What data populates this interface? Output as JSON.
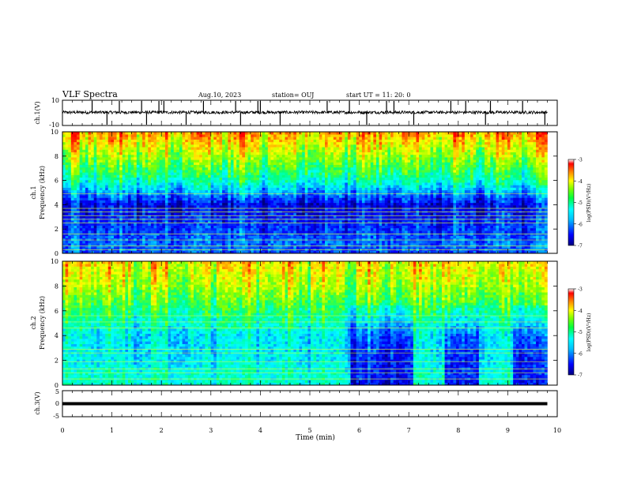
{
  "header": {
    "title": "VLF Spectra",
    "date": "Aug.10, 2023",
    "station": "station= OUJ",
    "start": "start  UT =   11: 20: 0"
  },
  "colors": {
    "axis": "#000000",
    "trace": "#000000",
    "colormap": [
      "#000080",
      "#0000ff",
      "#0080ff",
      "#00ffff",
      "#00ff80",
      "#80ff00",
      "#ffff00",
      "#ff8000",
      "#ff0000"
    ]
  },
  "chart_data": [
    {
      "type": "line",
      "name": "ch1-waveform",
      "ylabel": "ch.1(V)",
      "ylim": [
        -10,
        10
      ],
      "yticks": [
        "10",
        "-10"
      ],
      "xlim": [
        0,
        10
      ],
      "data_extent_min": 9.8,
      "baseline_v": 0.4,
      "noise_amplitude_v": 1.2,
      "spike_times_min": [
        0.6,
        0.9,
        1.15,
        1.6,
        1.7,
        1.95,
        2.05,
        2.5,
        2.85,
        3.5,
        3.6,
        3.95,
        4.0,
        4.4,
        5.35,
        5.8,
        6.15,
        6.55,
        6.7,
        7.1,
        7.85,
        8.15,
        8.55,
        8.65,
        9.3,
        9.75
      ]
    },
    {
      "type": "heatmap",
      "name": "ch1-spectrogram",
      "ylabel_line1": "ch.1",
      "ylabel_line2": "Frequency (kHz)",
      "xlim": [
        0,
        10
      ],
      "ylim": [
        0,
        10
      ],
      "yticks": [
        "0",
        "2",
        "4",
        "6",
        "8",
        "10"
      ],
      "colorbar": {
        "label": "log(PSD)(V²/Hz)",
        "ticks": [
          "-3",
          "-4",
          "-5",
          "-6",
          "-7"
        ],
        "range": [
          -7,
          -3
        ]
      },
      "profile_freq_khz": [
        0,
        1,
        2,
        3,
        4,
        5,
        6,
        7,
        8,
        9,
        10
      ],
      "profile_log_psd": [
        -6.2,
        -6.1,
        -6.3,
        -6.4,
        -6.6,
        -5.9,
        -5.2,
        -4.8,
        -4.4,
        -4.0,
        -3.6
      ],
      "line_freqs_khz": [
        0.3,
        0.6,
        1.1,
        1.6,
        2.5,
        2.8,
        3.1,
        3.4,
        3.7,
        4.9
      ],
      "dark_intervals_min": []
    },
    {
      "type": "heatmap",
      "name": "ch2-spectrogram",
      "ylabel_line1": "ch.2",
      "ylabel_line2": "Frequency (kHz)",
      "xlim": [
        0,
        10
      ],
      "ylim": [
        0,
        10
      ],
      "yticks": [
        "0",
        "2",
        "4",
        "6",
        "8",
        "10"
      ],
      "colorbar": {
        "label": "log(PSD)(V²/Hz)",
        "ticks": [
          "-3",
          "-4",
          "-5",
          "-6",
          "-7"
        ],
        "range": [
          -7,
          -3
        ]
      },
      "profile_freq_khz": [
        0,
        1,
        2,
        3,
        4,
        5,
        6,
        7,
        8,
        9,
        10
      ],
      "profile_log_psd": [
        -5.3,
        -5.3,
        -5.5,
        -5.5,
        -5.5,
        -5.2,
        -4.9,
        -4.6,
        -4.3,
        -4.1,
        -3.9
      ],
      "line_freqs_khz": [
        0.5,
        1.0,
        1.3,
        1.9,
        2.6,
        2.9,
        4.6,
        5.1,
        5.6
      ],
      "dark_intervals_min": [
        [
          5.85,
          7.1
        ],
        [
          7.7,
          8.4
        ],
        [
          9.1,
          9.8
        ]
      ]
    },
    {
      "type": "line",
      "name": "ch3-waveform",
      "ylabel": "ch.3(V)",
      "ylim": [
        -5,
        5
      ],
      "yticks": [
        "5",
        "0",
        "-5"
      ],
      "xlim": [
        0,
        10
      ],
      "data_extent_min": 9.8,
      "level_v": 0
    }
  ],
  "xaxis": {
    "label": "Time  (min)",
    "ticks": [
      "0",
      "1",
      "2",
      "3",
      "4",
      "5",
      "6",
      "7",
      "8",
      "9",
      "10"
    ]
  }
}
